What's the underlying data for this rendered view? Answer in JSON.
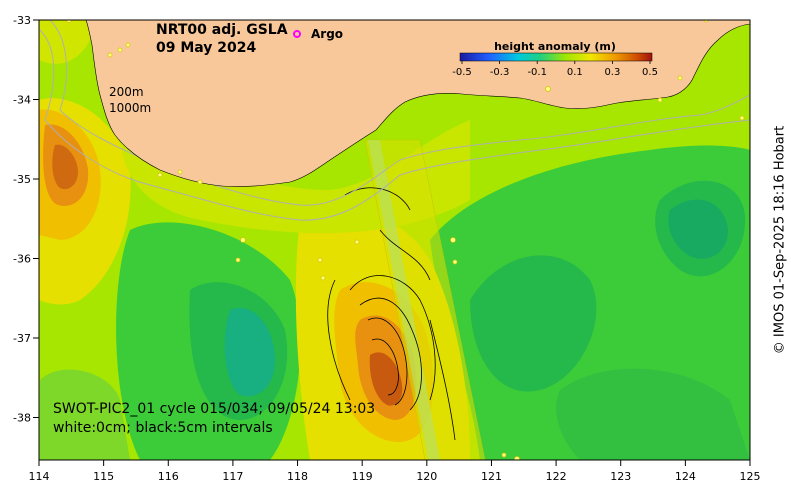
{
  "map": {
    "title_line1": "NRT00 adj. GSLA",
    "title_line2": "09 May 2024",
    "argo_label": "Argo",
    "depth_label_200": "200m",
    "depth_label_1000": "1000m",
    "caption_line1": "SWOT-PIC2_01 cycle 015/034; 09/05/24 13:03",
    "caption_line2": "white:0cm; black:5cm intervals",
    "credit": "© IMOS 01-Sep-2025 18:16 Hobart",
    "lon_ticks": [
      "114",
      "115",
      "116",
      "117",
      "118",
      "119",
      "120",
      "121",
      "122",
      "123",
      "124",
      "125"
    ],
    "lat_ticks": [
      "-33",
      "-34",
      "-35",
      "-36",
      "-37",
      "-38"
    ],
    "colorbar": {
      "title": "height anomaly (m)",
      "ticks": [
        "-0.5",
        "-0.3",
        "-0.1",
        "0.1",
        "0.3",
        "0.5"
      ]
    },
    "colors": {
      "land": "#f8c89a",
      "argo": "#ff00ff",
      "ocean_base": "#a6e600"
    }
  }
}
